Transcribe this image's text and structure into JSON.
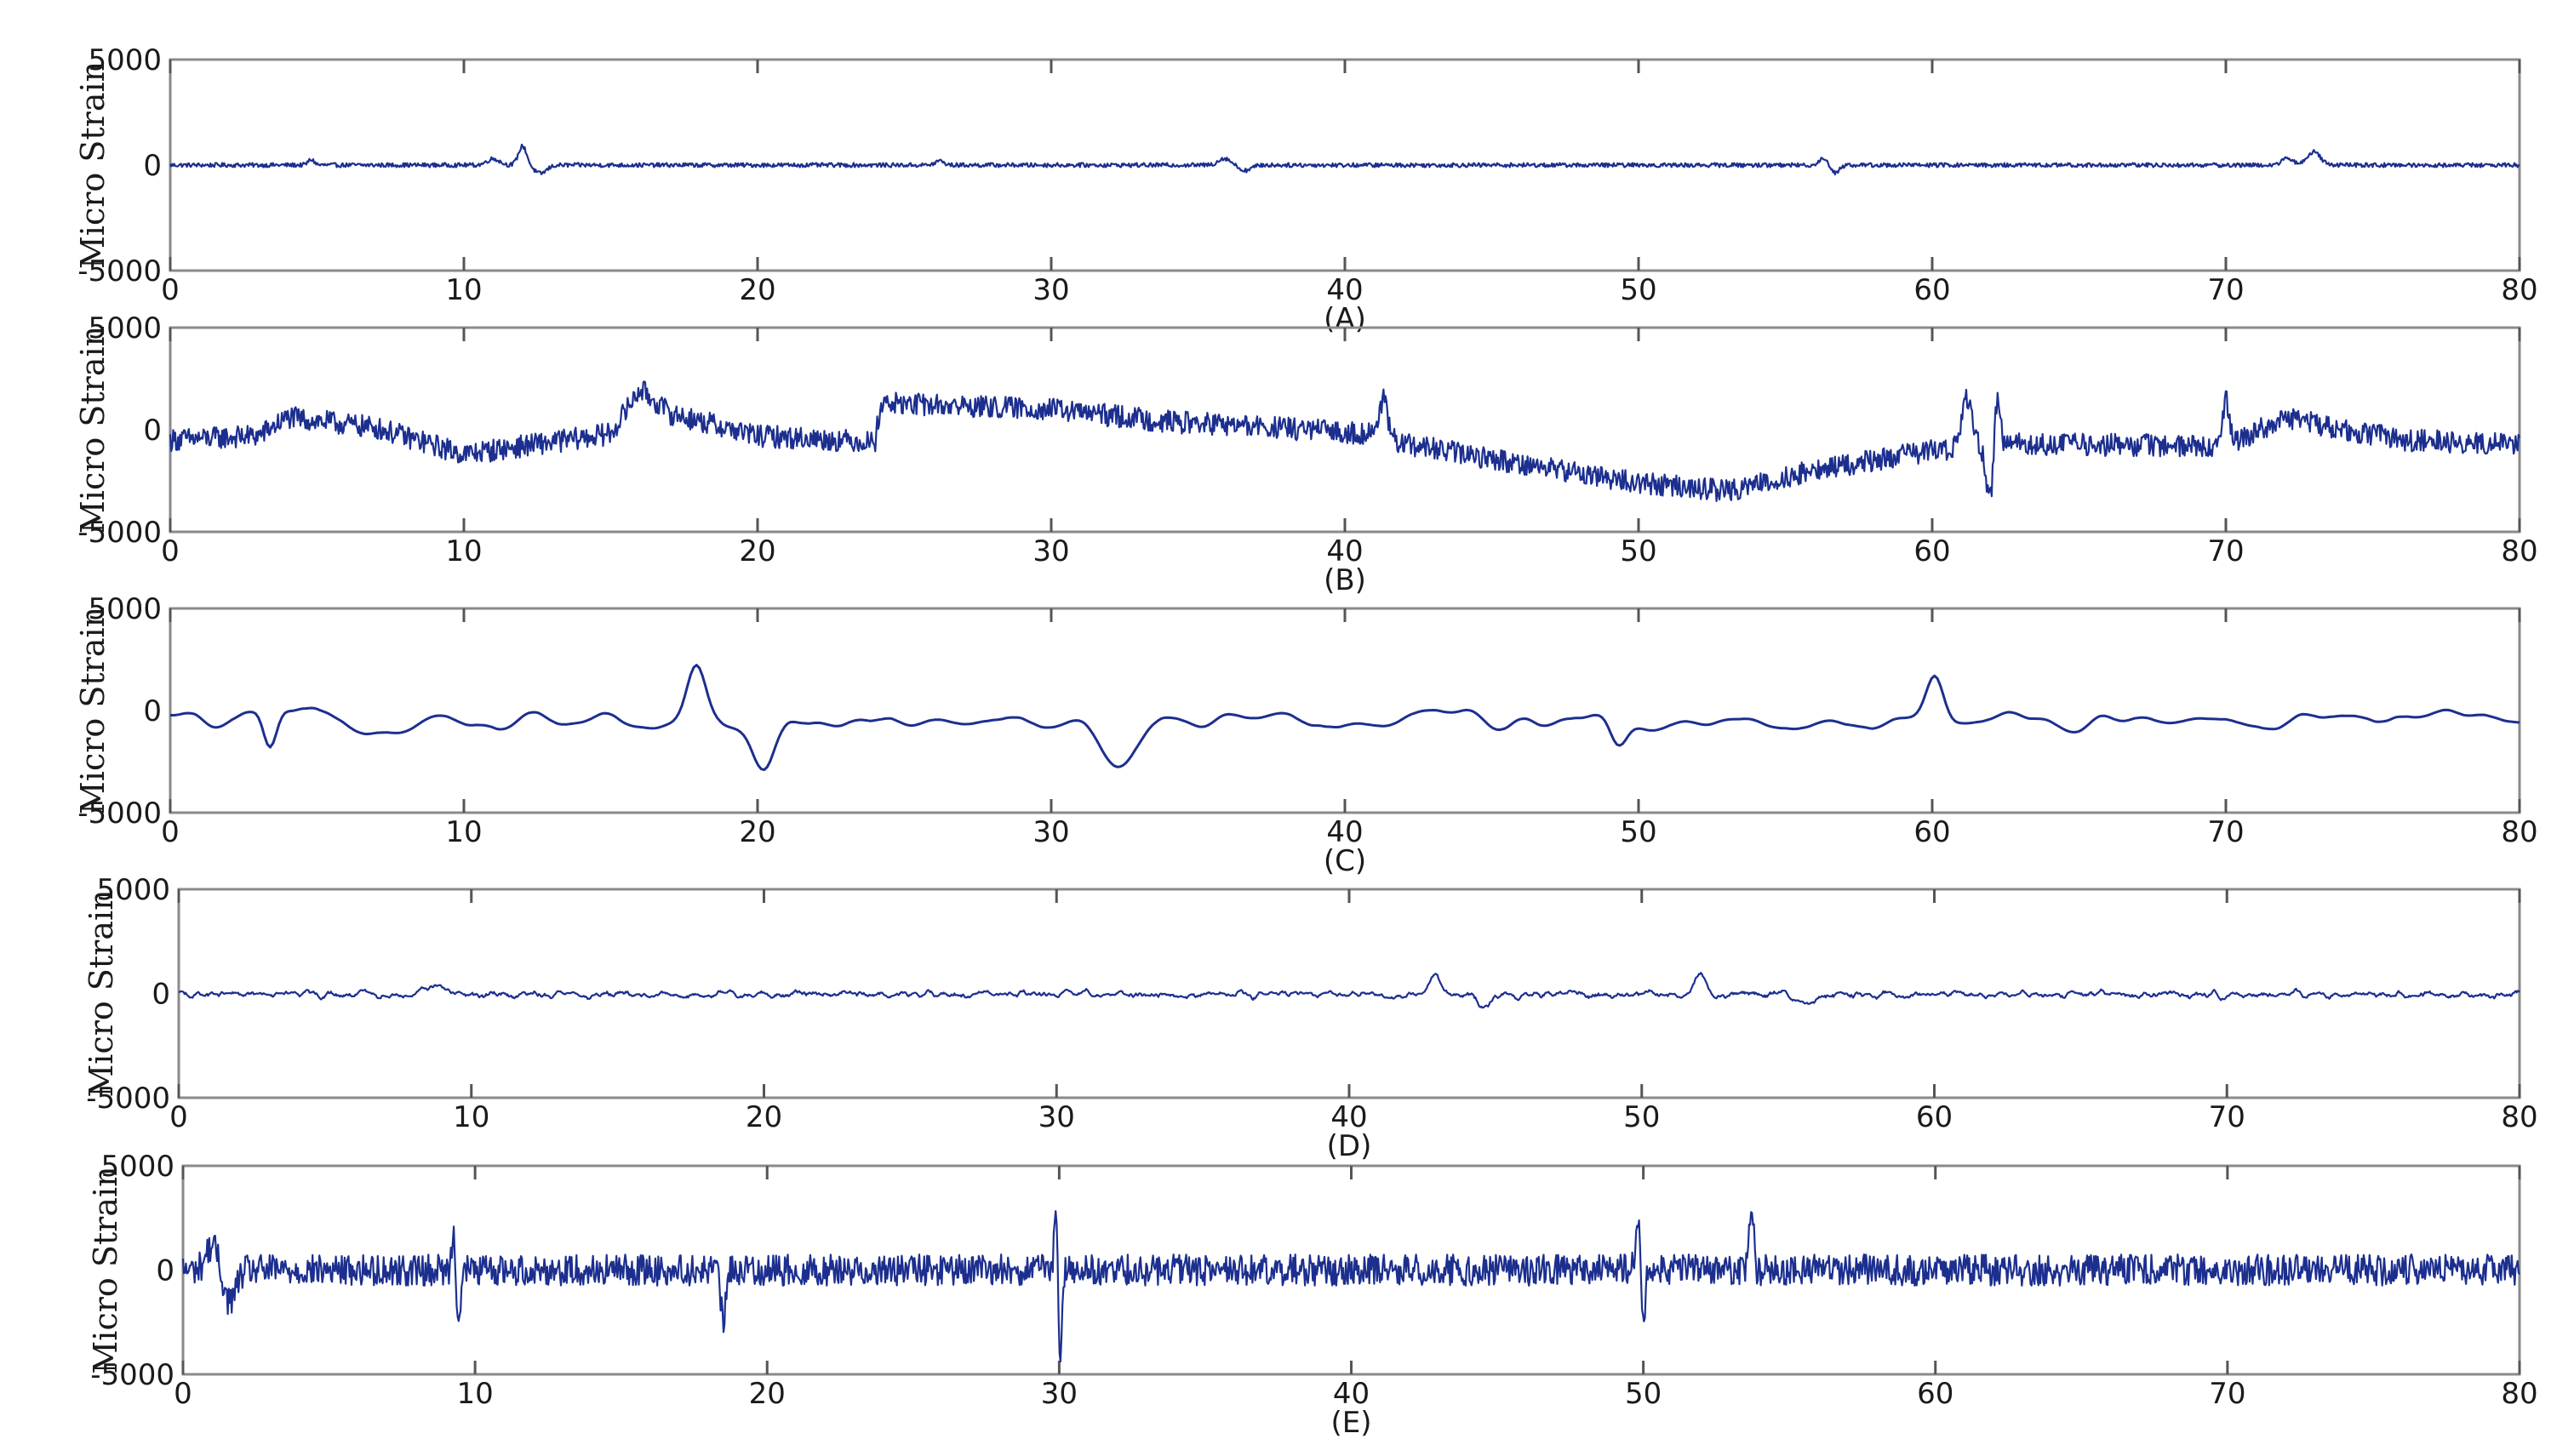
{
  "colors": {
    "trace": "#1c2f8f",
    "frame": "#8a8a8a",
    "text": "#1a1a1a"
  },
  "chart_data": [
    {
      "type": "line",
      "caption": "(A)",
      "ylabel": "Micro Strain",
      "xlim": [
        0,
        80
      ],
      "ylim": [
        -5000,
        5000
      ],
      "xticks": [
        "0",
        "10",
        "20",
        "30",
        "40",
        "50",
        "60",
        "70",
        "80"
      ],
      "yticks": [
        "5000",
        "0",
        "-5000"
      ],
      "grid": false,
      "series": [
        {
          "baseline": 0,
          "noise": 100,
          "samples": 2400,
          "smooth": 1,
          "events": [
            [
              4.8,
              260,
              0.15
            ],
            [
              11.0,
              300,
              0.3
            ],
            [
              12.0,
              900,
              0.2
            ],
            [
              12.6,
              -400,
              0.3
            ],
            [
              26.2,
              200,
              0.2
            ],
            [
              35.9,
              320,
              0.3
            ],
            [
              36.6,
              -250,
              0.3
            ],
            [
              56.3,
              330,
              0.2
            ],
            [
              56.7,
              -360,
              0.2
            ],
            [
              72.1,
              300,
              0.3
            ],
            [
              73.0,
              650,
              0.3
            ]
          ]
        }
      ]
    },
    {
      "type": "line",
      "caption": "(B)",
      "ylabel": "Micro Strain",
      "xlim": [
        0,
        80
      ],
      "ylim": [
        -5000,
        5000
      ],
      "xticks": [
        "0",
        "10",
        "20",
        "30",
        "40",
        "50",
        "60",
        "70",
        "80"
      ],
      "yticks": [
        "5000",
        "0",
        "-5000"
      ],
      "grid": false,
      "series": [
        {
          "noise": 550,
          "samples": 2400,
          "smooth": 1,
          "baseline_points": [
            [
              0,
              -500
            ],
            [
              3,
              -300
            ],
            [
              4,
              600
            ],
            [
              7,
              100
            ],
            [
              10,
              -1200
            ],
            [
              15,
              -200
            ],
            [
              16,
              2000
            ],
            [
              17,
              800
            ],
            [
              20,
              -300
            ],
            [
              24,
              -600
            ],
            [
              24.2,
              1300
            ],
            [
              30,
              1000
            ],
            [
              34,
              400
            ],
            [
              41,
              -200
            ],
            [
              42,
              -700
            ],
            [
              50,
              -2600
            ],
            [
              53,
              -3000
            ],
            [
              56,
              -2000
            ],
            [
              60,
              -1000
            ],
            [
              63,
              -700
            ],
            [
              70,
              -800
            ],
            [
              72,
              600
            ],
            [
              76,
              -500
            ],
            [
              80,
              -700
            ]
          ],
          "events": [
            [
              41.3,
              1800,
              0.2
            ],
            [
              61.2,
              2400,
              0.25
            ],
            [
              62.0,
              -2800,
              0.2
            ],
            [
              62.2,
              3200,
              0.15
            ],
            [
              70.0,
              2200,
              0.15
            ]
          ]
        }
      ]
    },
    {
      "type": "line",
      "caption": "(C)",
      "ylabel": "Micro Strain",
      "xlim": [
        0,
        80
      ],
      "ylim": [
        -5000,
        5000
      ],
      "xticks": [
        "0",
        "10",
        "20",
        "30",
        "40",
        "50",
        "60",
        "70",
        "80"
      ],
      "yticks": [
        "5000",
        "0",
        "-5000"
      ],
      "grid": false,
      "series": [
        {
          "noise": 650,
          "samples": 800,
          "smooth": 4,
          "baseline": -500,
          "events": [
            [
              17.9,
              2800,
              0.45
            ],
            [
              20.2,
              -2700,
              0.55
            ],
            [
              32.3,
              -2600,
              0.8
            ],
            [
              60.1,
              2000,
              0.4
            ],
            [
              3.4,
              -1700,
              0.3
            ],
            [
              49.3,
              -1300,
              0.4
            ]
          ]
        }
      ]
    },
    {
      "type": "line",
      "caption": "(D)",
      "ylabel": "Micro Strain",
      "xlim": [
        0,
        80
      ],
      "ylim": [
        -5000,
        5000
      ],
      "xticks": [
        "0",
        "10",
        "20",
        "30",
        "40",
        "50",
        "60",
        "70",
        "80"
      ],
      "yticks": [
        "5000",
        "0",
        "-5000"
      ],
      "grid": false,
      "series": [
        {
          "noise": 280,
          "samples": 2400,
          "smooth": 2,
          "baseline": -50,
          "events": [
            [
              8.8,
              500,
              0.4
            ],
            [
              42.9,
              900,
              0.3
            ],
            [
              44.6,
              -700,
              0.3
            ],
            [
              52.0,
              900,
              0.3
            ],
            [
              55.6,
              -600,
              0.4
            ]
          ]
        }
      ]
    },
    {
      "type": "line",
      "caption": "(E)",
      "ylabel": "Micro Strain",
      "xlim": [
        0,
        80
      ],
      "ylim": [
        -5000,
        5000
      ],
      "xticks": [
        "0",
        "10",
        "20",
        "30",
        "40",
        "50",
        "60",
        "70",
        "80"
      ],
      "yticks": [
        "5000",
        "0",
        "-5000"
      ],
      "grid": false,
      "series": [
        {
          "noise": 750,
          "samples": 2400,
          "smooth": 1,
          "baseline": 0,
          "events": [
            [
              9.3,
              3200,
              0.1
            ],
            [
              9.4,
              -3300,
              0.12
            ],
            [
              18.5,
              -2900,
              0.1
            ],
            [
              29.9,
              4900,
              0.08
            ],
            [
              30.0,
              -4900,
              0.1
            ],
            [
              49.8,
              2800,
              0.1
            ],
            [
              50.0,
              -2400,
              0.1
            ],
            [
              53.7,
              3300,
              0.1
            ],
            [
              1.0,
              1200,
              0.3
            ],
            [
              1.6,
              -1500,
              0.3
            ]
          ]
        }
      ]
    }
  ]
}
